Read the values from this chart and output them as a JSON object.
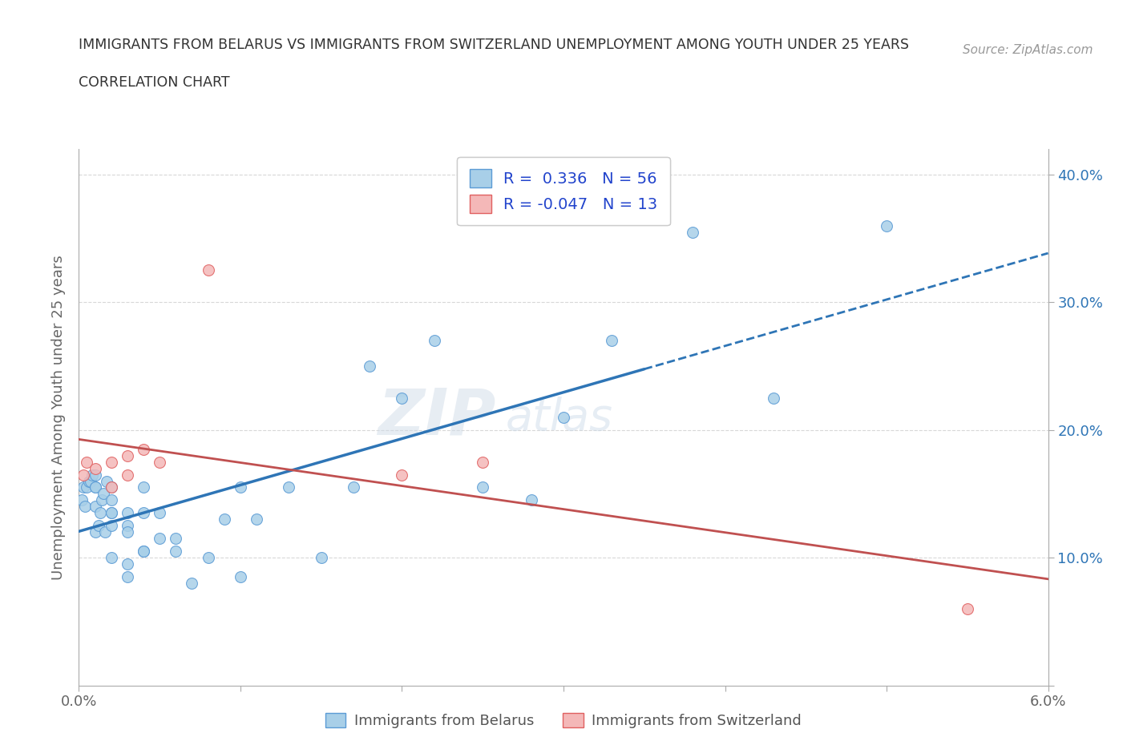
{
  "title_line1": "IMMIGRANTS FROM BELARUS VS IMMIGRANTS FROM SWITZERLAND UNEMPLOYMENT AMONG YOUTH UNDER 25 YEARS",
  "title_line2": "CORRELATION CHART",
  "source_text": "Source: ZipAtlas.com",
  "ylabel": "Unemployment Among Youth under 25 years",
  "xlim": [
    0.0,
    0.06
  ],
  "ylim": [
    0.0,
    0.42
  ],
  "xticks": [
    0.0,
    0.01,
    0.02,
    0.03,
    0.04,
    0.05,
    0.06
  ],
  "yticks": [
    0.0,
    0.1,
    0.2,
    0.3,
    0.4
  ],
  "right_ytick_labels": [
    "",
    "10.0%",
    "20.0%",
    "30.0%",
    "40.0%"
  ],
  "xtick_labels": [
    "0.0%",
    "",
    "",
    "",
    "",
    "",
    "6.0%"
  ],
  "watermark_line1": "ZIP",
  "watermark_line2": "atlas",
  "blue_color": "#a8cfe8",
  "blue_edge_color": "#5b9bd5",
  "blue_line_color": "#2e75b6",
  "pink_color": "#f4b8b8",
  "pink_edge_color": "#e06060",
  "pink_line_color": "#c05050",
  "legend_blue_label": "R =  0.336   N = 56",
  "legend_pink_label": "R = -0.047   N = 13",
  "legend_label_blue": "Immigrants from Belarus",
  "legend_label_pink": "Immigrants from Switzerland",
  "blue_scatter_x": [
    0.0002,
    0.0003,
    0.0004,
    0.0005,
    0.0006,
    0.0007,
    0.0008,
    0.001,
    0.001,
    0.001,
    0.001,
    0.001,
    0.0012,
    0.0013,
    0.0014,
    0.0015,
    0.0016,
    0.0017,
    0.002,
    0.002,
    0.002,
    0.002,
    0.002,
    0.002,
    0.003,
    0.003,
    0.003,
    0.003,
    0.003,
    0.004,
    0.004,
    0.004,
    0.004,
    0.005,
    0.005,
    0.006,
    0.006,
    0.007,
    0.008,
    0.009,
    0.01,
    0.01,
    0.011,
    0.013,
    0.015,
    0.017,
    0.018,
    0.02,
    0.022,
    0.025,
    0.028,
    0.03,
    0.033,
    0.038,
    0.043,
    0.05
  ],
  "blue_scatter_y": [
    0.145,
    0.155,
    0.14,
    0.155,
    0.16,
    0.16,
    0.165,
    0.12,
    0.14,
    0.155,
    0.155,
    0.165,
    0.125,
    0.135,
    0.145,
    0.15,
    0.12,
    0.16,
    0.1,
    0.125,
    0.135,
    0.145,
    0.155,
    0.135,
    0.095,
    0.125,
    0.135,
    0.085,
    0.12,
    0.105,
    0.135,
    0.155,
    0.105,
    0.115,
    0.135,
    0.105,
    0.115,
    0.08,
    0.1,
    0.13,
    0.155,
    0.085,
    0.13,
    0.155,
    0.1,
    0.155,
    0.25,
    0.225,
    0.27,
    0.155,
    0.145,
    0.21,
    0.27,
    0.355,
    0.225,
    0.36
  ],
  "pink_scatter_x": [
    0.0003,
    0.0005,
    0.001,
    0.002,
    0.002,
    0.003,
    0.003,
    0.004,
    0.005,
    0.008,
    0.02,
    0.025,
    0.055
  ],
  "pink_scatter_y": [
    0.165,
    0.175,
    0.17,
    0.155,
    0.175,
    0.165,
    0.18,
    0.185,
    0.175,
    0.325,
    0.165,
    0.175,
    0.06
  ],
  "background_color": "#ffffff",
  "grid_color": "#d8d8d8"
}
